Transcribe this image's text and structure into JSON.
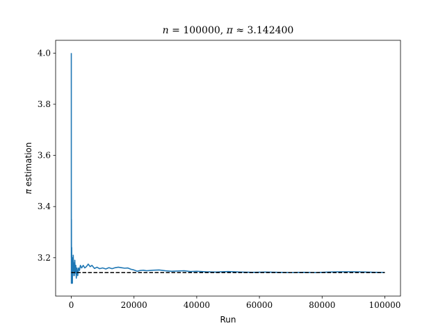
{
  "chart_data": {
    "type": "line",
    "title": {
      "parts": [
        {
          "text": "n",
          "italic": true
        },
        {
          "text": " = 100000, ",
          "italic": false
        },
        {
          "text": "π",
          "italic": true
        },
        {
          "text": " ≈ 3.142400",
          "italic": false
        }
      ]
    },
    "xlabel": "Run",
    "ylabel": {
      "parts": [
        {
          "text": "π",
          "italic": true
        },
        {
          "text": " estimation",
          "italic": false
        }
      ]
    },
    "xlim": [
      -5000,
      105000
    ],
    "ylim": [
      3.05,
      4.05
    ],
    "xticks": [
      {
        "value": 0,
        "label": "0"
      },
      {
        "value": 20000,
        "label": "20000"
      },
      {
        "value": 40000,
        "label": "40000"
      },
      {
        "value": 60000,
        "label": "60000"
      },
      {
        "value": 80000,
        "label": "80000"
      },
      {
        "value": 100000,
        "label": "100000"
      }
    ],
    "yticks": [
      {
        "value": 3.2,
        "label": "3.2"
      },
      {
        "value": 3.4,
        "label": "3.4"
      },
      {
        "value": 3.6,
        "label": "3.6"
      },
      {
        "value": 3.8,
        "label": "3.8"
      },
      {
        "value": 4.0,
        "label": "4.0"
      }
    ],
    "grid": false,
    "series": [
      {
        "color": "#1f77b4",
        "style": "solid",
        "points": [
          [
            1,
            4.0
          ],
          [
            5,
            3.2
          ],
          [
            10,
            3.47
          ],
          [
            20,
            3.1
          ],
          [
            40,
            3.35
          ],
          [
            60,
            3.2
          ],
          [
            90,
            3.11
          ],
          [
            130,
            3.24
          ],
          [
            170,
            3.14
          ],
          [
            220,
            3.2
          ],
          [
            280,
            3.17
          ],
          [
            350,
            3.1
          ],
          [
            430,
            3.2
          ],
          [
            520,
            3.13
          ],
          [
            620,
            3.21
          ],
          [
            730,
            3.15
          ],
          [
            850,
            3.18
          ],
          [
            980,
            3.13
          ],
          [
            1120,
            3.19
          ],
          [
            1270,
            3.14
          ],
          [
            1430,
            3.17
          ],
          [
            1600,
            3.12
          ],
          [
            1800,
            3.16
          ],
          [
            2050,
            3.13
          ],
          [
            2300,
            3.16
          ],
          [
            2600,
            3.15
          ],
          [
            2900,
            3.17
          ],
          [
            3300,
            3.16
          ],
          [
            3800,
            3.17
          ],
          [
            4300,
            3.16
          ],
          [
            4800,
            3.165
          ],
          [
            5400,
            3.175
          ],
          [
            6000,
            3.165
          ],
          [
            6600,
            3.17
          ],
          [
            7400,
            3.158
          ],
          [
            8200,
            3.163
          ],
          [
            9000,
            3.157
          ],
          [
            10000,
            3.16
          ],
          [
            11000,
            3.156
          ],
          [
            12000,
            3.161
          ],
          [
            13000,
            3.157
          ],
          [
            14000,
            3.161
          ],
          [
            15000,
            3.163
          ],
          [
            16000,
            3.161
          ],
          [
            17000,
            3.159
          ],
          [
            18000,
            3.16
          ],
          [
            19000,
            3.155
          ],
          [
            20000,
            3.152
          ],
          [
            21000,
            3.147
          ],
          [
            22000,
            3.15
          ],
          [
            23000,
            3.151
          ],
          [
            24000,
            3.149
          ],
          [
            26000,
            3.151
          ],
          [
            28000,
            3.152
          ],
          [
            30000,
            3.149
          ],
          [
            32000,
            3.147
          ],
          [
            34000,
            3.148
          ],
          [
            36000,
            3.149
          ],
          [
            38000,
            3.146
          ],
          [
            40000,
            3.147
          ],
          [
            43000,
            3.145
          ],
          [
            46000,
            3.144
          ],
          [
            50000,
            3.146
          ],
          [
            54000,
            3.144
          ],
          [
            58000,
            3.143
          ],
          [
            62000,
            3.144
          ],
          [
            66000,
            3.143
          ],
          [
            70000,
            3.142
          ],
          [
            74000,
            3.143
          ],
          [
            78000,
            3.142
          ],
          [
            82000,
            3.144
          ],
          [
            86000,
            3.145
          ],
          [
            90000,
            3.145
          ],
          [
            94000,
            3.144
          ],
          [
            97000,
            3.143
          ],
          [
            100000,
            3.1424
          ]
        ]
      },
      {
        "color": "#000000",
        "style": "dashed",
        "points": [
          [
            0,
            3.14159
          ],
          [
            100000,
            3.14159
          ]
        ]
      }
    ]
  }
}
